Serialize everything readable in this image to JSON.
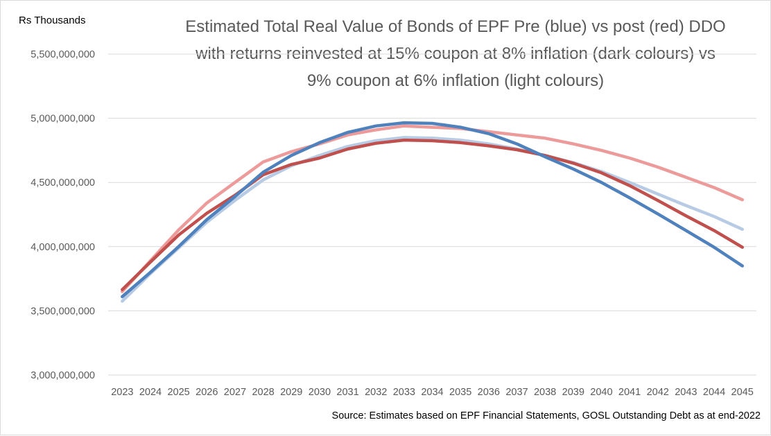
{
  "chart_data": {
    "type": "line",
    "title": "Estimated Total Real Value of Bonds of EPF Pre (blue) vs post (red) DDO\nwith returns reinvested at 15% coupon at 8% inflation (dark colours) vs\n9% coupon at 6% inflation (light colours)",
    "ylabel": "Rs Thousands",
    "xlabel": "",
    "source": "Source: Estimates based on EPF Financial Statements, GOSL Outstanding Debt as at end-2022",
    "ylim": [
      3000000000,
      5500000000
    ],
    "yticks": [
      3000000000,
      3500000000,
      4000000000,
      4500000000,
      5000000000,
      5500000000
    ],
    "ytick_labels": [
      "3,000,000,000",
      "3,500,000,000",
      "4,000,000,000",
      "4,500,000,000",
      "5,000,000,000",
      "5,500,000,000"
    ],
    "grid": true,
    "legend": "none",
    "x": [
      2023,
      2024,
      2025,
      2026,
      2027,
      2028,
      2029,
      2030,
      2031,
      2032,
      2033,
      2034,
      2035,
      2036,
      2037,
      2038,
      2039,
      2040,
      2041,
      2042,
      2043,
      2044,
      2045
    ],
    "series": [
      {
        "color": "#ec9a9a",
        "values": [
          3650000000,
          3890000000,
          4130000000,
          4340000000,
          4500000000,
          4660000000,
          4740000000,
          4800000000,
          4870000000,
          4910000000,
          4940000000,
          4930000000,
          4920000000,
          4895000000,
          4870000000,
          4845000000,
          4800000000,
          4750000000,
          4690000000,
          4620000000,
          4540000000,
          4460000000,
          4365000000
        ]
      },
      {
        "color": "#b8cbe4",
        "values": [
          3575000000,
          3790000000,
          3990000000,
          4190000000,
          4360000000,
          4520000000,
          4630000000,
          4710000000,
          4780000000,
          4825000000,
          4850000000,
          4845000000,
          4830000000,
          4800000000,
          4760000000,
          4710000000,
          4655000000,
          4585000000,
          4500000000,
          4410000000,
          4320000000,
          4235000000,
          4135000000
        ]
      },
      {
        "color": "#c0504d",
        "values": [
          3665000000,
          3880000000,
          4090000000,
          4260000000,
          4400000000,
          4560000000,
          4640000000,
          4690000000,
          4760000000,
          4805000000,
          4830000000,
          4825000000,
          4810000000,
          4785000000,
          4755000000,
          4710000000,
          4650000000,
          4575000000,
          4475000000,
          4360000000,
          4240000000,
          4125000000,
          3995000000
        ]
      },
      {
        "color": "#4f81bd",
        "values": [
          3610000000,
          3800000000,
          4000000000,
          4210000000,
          4390000000,
          4580000000,
          4710000000,
          4810000000,
          4890000000,
          4940000000,
          4965000000,
          4960000000,
          4930000000,
          4880000000,
          4800000000,
          4700000000,
          4605000000,
          4500000000,
          4380000000,
          4255000000,
          4125000000,
          3995000000,
          3850000000
        ]
      }
    ]
  }
}
